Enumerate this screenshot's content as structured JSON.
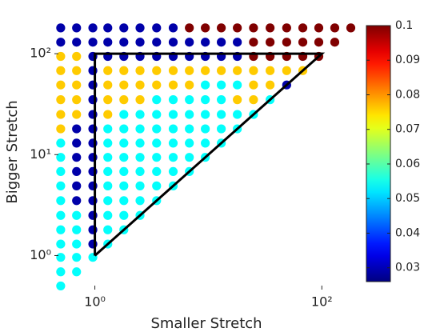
{
  "chart_data": {
    "type": "scatter",
    "xlabel": "Smaller Stretch",
    "ylabel": "Bigger Stretch",
    "xscale": "log",
    "yscale": "log",
    "colormap": "jet",
    "xlim": [
      0.44,
      200
    ],
    "ylim": [
      0.46,
      245
    ],
    "clim": [
      0.026,
      0.1
    ],
    "xticks": [
      {
        "value": 1,
        "label": "10⁰"
      },
      {
        "value": 100,
        "label": "10²"
      }
    ],
    "yticks": [
      {
        "value": 1,
        "label": "10⁰"
      },
      {
        "value": 10,
        "label": "10¹"
      },
      {
        "value": 100,
        "label": "10²"
      }
    ],
    "cticks": [
      0.03,
      0.04,
      0.05,
      0.06,
      0.07,
      0.08,
      0.09,
      0.1
    ],
    "x": [
      0.5,
      0.69,
      0.96,
      1.3,
      1.8,
      2.5,
      3.5,
      4.9,
      6.8,
      9.4,
      13,
      18,
      25,
      35,
      49,
      68,
      94,
      130,
      180
    ],
    "y": [
      0.5,
      0.69,
      0.96,
      1.3,
      1.8,
      2.5,
      3.5,
      4.9,
      6.8,
      9.4,
      13,
      18,
      25,
      35,
      49,
      68,
      94,
      130,
      180
    ],
    "values": [
      [
        0.054
      ],
      [
        0.054,
        0.054
      ],
      [
        0.054,
        0.054,
        0.054
      ],
      [
        0.054,
        0.054,
        0.029,
        0.054
      ],
      [
        0.054,
        0.054,
        0.029,
        0.054,
        0.054
      ],
      [
        0.054,
        0.054,
        0.029,
        0.054,
        0.054,
        0.054
      ],
      [
        0.054,
        0.029,
        0.029,
        0.054,
        0.054,
        0.054,
        0.054
      ],
      [
        0.054,
        0.029,
        0.029,
        0.054,
        0.054,
        0.054,
        0.054,
        0.054
      ],
      [
        0.054,
        0.029,
        0.029,
        0.054,
        0.054,
        0.054,
        0.054,
        0.054,
        0.054
      ],
      [
        0.054,
        0.029,
        0.029,
        0.054,
        0.054,
        0.054,
        0.054,
        0.054,
        0.054,
        0.054
      ],
      [
        0.054,
        0.029,
        0.029,
        0.054,
        0.054,
        0.054,
        0.054,
        0.054,
        0.054,
        0.054,
        0.054
      ],
      [
        0.076,
        0.029,
        0.029,
        0.054,
        0.054,
        0.054,
        0.054,
        0.054,
        0.054,
        0.054,
        0.054,
        0.054
      ],
      [
        0.076,
        0.076,
        0.029,
        0.076,
        0.054,
        0.054,
        0.054,
        0.054,
        0.054,
        0.054,
        0.054,
        0.054,
        0.054
      ],
      [
        0.076,
        0.076,
        0.029,
        0.076,
        0.076,
        0.076,
        0.054,
        0.054,
        0.054,
        0.054,
        0.054,
        0.076,
        0.076,
        0.054
      ],
      [
        0.076,
        0.076,
        0.029,
        0.076,
        0.076,
        0.076,
        0.076,
        0.076,
        0.076,
        0.054,
        0.054,
        0.054,
        0.076,
        0.076,
        0.029
      ],
      [
        0.076,
        0.076,
        0.029,
        0.076,
        0.076,
        0.076,
        0.076,
        0.076,
        0.076,
        0.076,
        0.076,
        0.076,
        0.076,
        0.076,
        0.076,
        0.076
      ],
      [
        0.076,
        0.076,
        0.029,
        0.029,
        0.029,
        0.029,
        0.029,
        0.029,
        0.029,
        0.029,
        0.029,
        0.029,
        0.1,
        0.1,
        0.1,
        0.1,
        0.1
      ],
      [
        0.029,
        0.029,
        0.029,
        0.029,
        0.029,
        0.029,
        0.029,
        0.029,
        0.029,
        0.029,
        0.029,
        0.029,
        0.1,
        0.1,
        0.1,
        0.1,
        0.1,
        0.1
      ],
      [
        0.029,
        0.029,
        0.029,
        0.029,
        0.029,
        0.029,
        0.029,
        0.029,
        0.1,
        0.1,
        0.1,
        0.1,
        0.1,
        0.1,
        0.1,
        0.1,
        0.1,
        0.1,
        0.1
      ]
    ],
    "triangle": {
      "x": [
        1,
        1,
        100,
        1
      ],
      "y": [
        1,
        100,
        100,
        1
      ]
    }
  }
}
